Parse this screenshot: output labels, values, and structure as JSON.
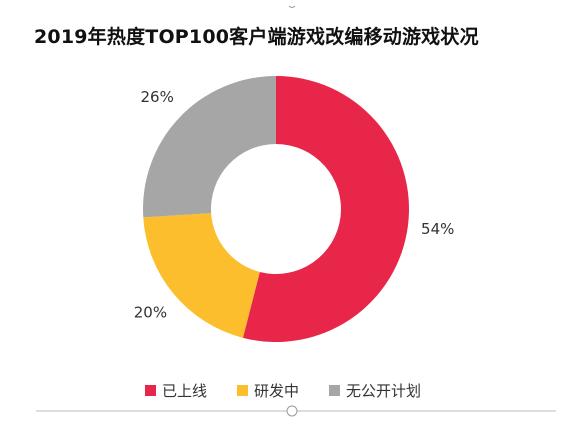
{
  "chart_data": {
    "type": "pie",
    "title": "2019年热度TOP100客户端游戏改编移动游戏状况",
    "categories": [
      "已上线",
      "研发中",
      "无公开计划"
    ],
    "values": [
      54,
      20,
      26
    ],
    "value_labels": [
      "54%",
      "20%",
      "26%"
    ],
    "colors": [
      "#E8264A",
      "#FCBE2C",
      "#A6A6A6"
    ],
    "donut": true,
    "legend": "bottom-center"
  }
}
